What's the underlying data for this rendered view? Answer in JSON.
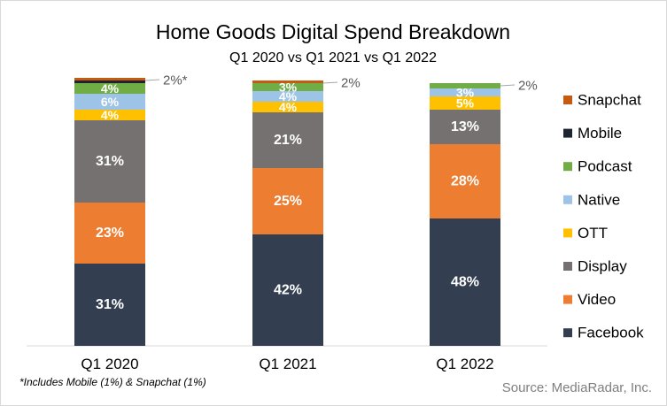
{
  "chart_data": {
    "type": "bar",
    "stacked": true,
    "title": "Home Goods Digital Spend Breakdown",
    "subtitle": "Q1 2020 vs Q1 2021 vs Q1 2022",
    "categories": [
      "Q1 2020",
      "Q1 2021",
      "Q1 2022"
    ],
    "series": [
      {
        "name": "Facebook",
        "color": "#333f50",
        "values": [
          31,
          42,
          48
        ],
        "labels": [
          "31%",
          "42%",
          "48%"
        ]
      },
      {
        "name": "Video",
        "color": "#ed7d31",
        "values": [
          23,
          25,
          28
        ],
        "labels": [
          "23%",
          "25%",
          "28%"
        ]
      },
      {
        "name": "Display",
        "color": "#767171",
        "values": [
          31,
          21,
          13
        ],
        "labels": [
          "31%",
          "21%",
          "13%"
        ]
      },
      {
        "name": "OTT",
        "color": "#ffc000",
        "values": [
          4,
          4,
          5
        ],
        "labels": [
          "4%",
          "4%",
          "5%"
        ]
      },
      {
        "name": "Native",
        "color": "#9dc3e6",
        "values": [
          6,
          4,
          3
        ],
        "labels": [
          "6%",
          "4%",
          "3%"
        ]
      },
      {
        "name": "Podcast",
        "color": "#70ad47",
        "values": [
          4,
          3,
          2
        ],
        "labels": [
          "4%",
          "3%",
          ""
        ]
      },
      {
        "name": "Mobile",
        "color": "#1f2530",
        "values": [
          1,
          0,
          0
        ],
        "labels": [
          "",
          "",
          ""
        ]
      },
      {
        "name": "Snapchat",
        "color": "#c55a11",
        "values": [
          1,
          1,
          0
        ],
        "labels": [
          "",
          "",
          ""
        ]
      }
    ],
    "callouts": [
      "2%*",
      "2%",
      "2%"
    ],
    "ylim": [
      0,
      100
    ],
    "legend": {
      "placement": "right",
      "order": [
        "Snapchat",
        "Mobile",
        "Podcast",
        "Native",
        "OTT",
        "Display",
        "Video",
        "Facebook"
      ]
    },
    "grid": false,
    "footnote": "*Includes Mobile (1%) & Snapchat (1%)",
    "source": "Source: MediaRadar, Inc."
  }
}
